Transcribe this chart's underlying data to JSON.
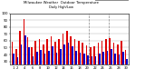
{
  "title": "Milwaukee Weather  Outdoor Temperature",
  "subtitle": "Daily High/Low",
  "days": [
    1,
    2,
    3,
    4,
    5,
    6,
    7,
    8,
    9,
    10,
    11,
    12,
    13,
    14,
    15,
    16,
    17,
    18,
    19,
    20,
    21,
    22,
    23,
    24,
    25,
    26,
    27,
    28,
    29,
    30
  ],
  "highs": [
    58,
    48,
    75,
    92,
    65,
    50,
    60,
    63,
    55,
    62,
    67,
    58,
    63,
    70,
    74,
    67,
    62,
    60,
    57,
    53,
    50,
    52,
    57,
    60,
    62,
    64,
    57,
    54,
    60,
    47
  ],
  "lows": [
    42,
    36,
    55,
    68,
    50,
    38,
    44,
    47,
    41,
    46,
    52,
    43,
    48,
    54,
    57,
    52,
    46,
    43,
    42,
    39,
    37,
    38,
    42,
    44,
    46,
    48,
    42,
    40,
    44,
    34
  ],
  "high_color": "#dd0000",
  "low_color": "#0000cc",
  "bg_color": "#ffffff",
  "grid_color": "#aaaaaa",
  "ylim_min": 25,
  "ylim_max": 100,
  "dashed_col1": 20,
  "dashed_col2": 24,
  "bar_width": 0.38,
  "legend_high": "High",
  "legend_low": "Low"
}
